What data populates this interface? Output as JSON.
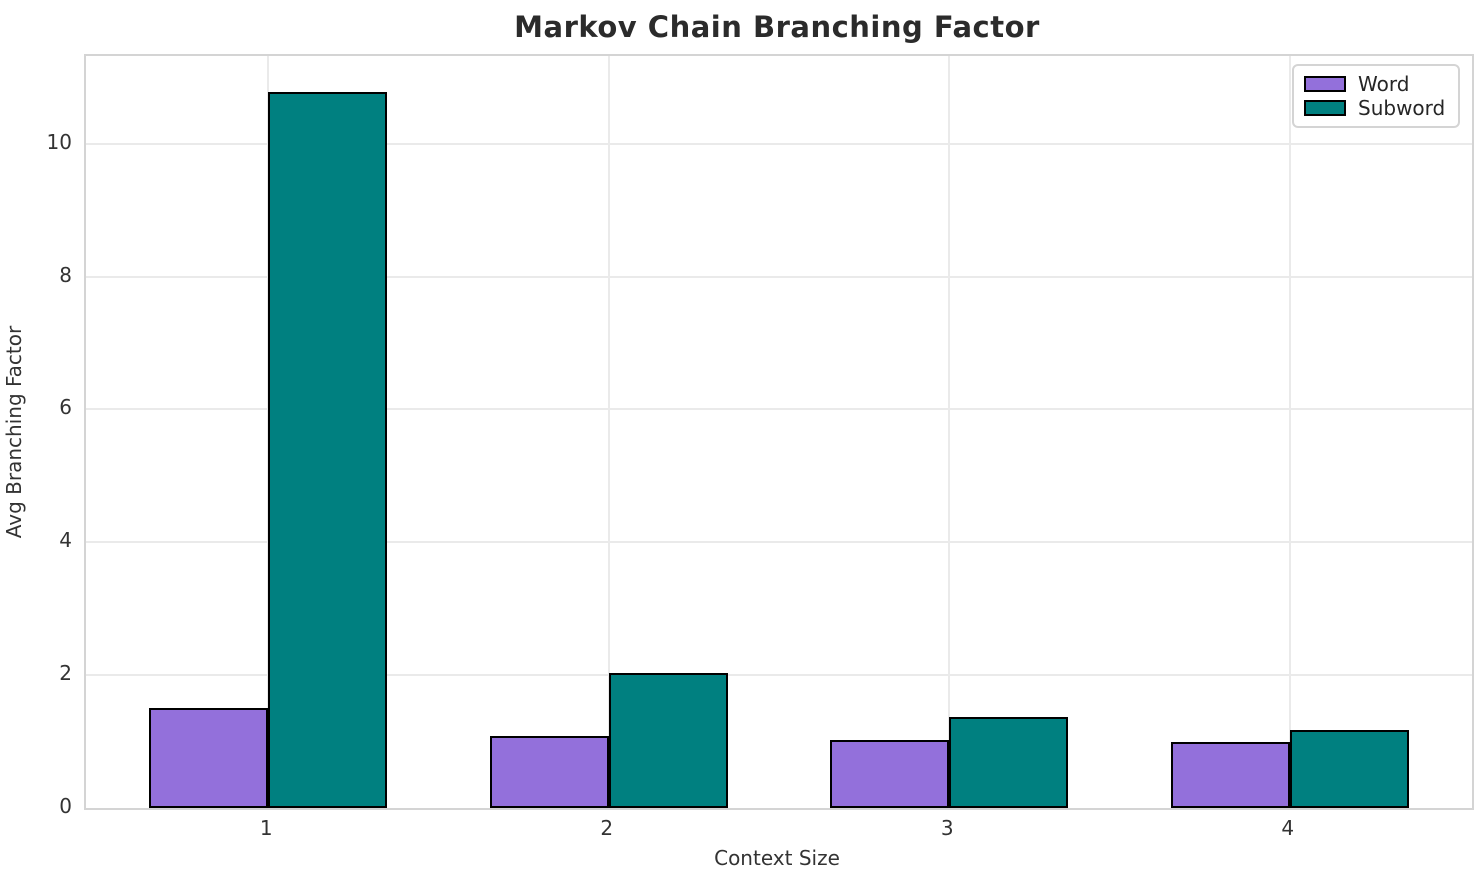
{
  "title": "Markov Chain Branching Factor",
  "axes": {
    "x_label": "Context Size",
    "y_label": "Avg Branching Factor",
    "y_ticks": [
      0,
      2,
      4,
      6,
      8,
      10
    ],
    "x_tick_labels": [
      "1",
      "2",
      "3",
      "4"
    ]
  },
  "legend": {
    "items": [
      {
        "label": "Word",
        "color": "#9370DB"
      },
      {
        "label": "Subword",
        "color": "#008080"
      }
    ]
  },
  "chart_data": {
    "type": "bar",
    "title": "Markov Chain Branching Factor",
    "xlabel": "Context Size",
    "ylabel": "Avg Branching Factor",
    "categories": [
      "1",
      "2",
      "3",
      "4"
    ],
    "series": [
      {
        "name": "Word",
        "color": "#9370DB",
        "values": [
          1.5,
          1.08,
          1.03,
          1.0
        ]
      },
      {
        "name": "Subword",
        "color": "#008080",
        "values": [
          10.78,
          2.03,
          1.37,
          1.17
        ]
      }
    ],
    "ylim": [
      0,
      11.32
    ],
    "y_ticks": [
      0,
      2,
      4,
      6,
      8,
      10
    ],
    "bar_width_fraction": 0.35,
    "bar_edge_color": "#000000",
    "grid": true,
    "legend_position": "upper right"
  },
  "colors": {
    "grid": "#eaeaea",
    "spine": "#d4d4d4",
    "text": "#333333",
    "title_text": "#2b2b2b",
    "background": "#ffffff"
  }
}
